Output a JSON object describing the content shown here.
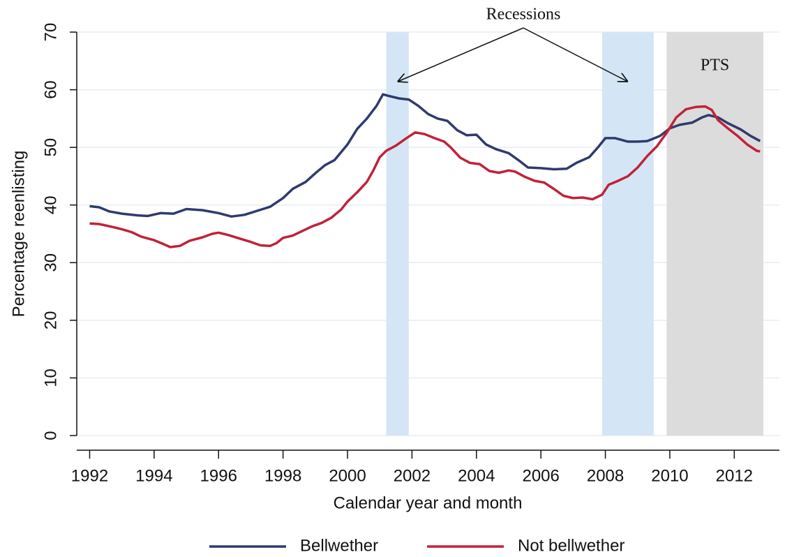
{
  "chart_data": {
    "type": "line",
    "xlabel": "Calendar year and month",
    "ylabel": "Percentage reenlisting",
    "xlim": [
      1991.6,
      2013.4
    ],
    "ylim": [
      0,
      70
    ],
    "xticks": [
      1992,
      1994,
      1996,
      1998,
      2000,
      2002,
      2004,
      2006,
      2008,
      2010,
      2012
    ],
    "yticks": [
      0,
      10,
      20,
      30,
      40,
      50,
      60,
      70
    ],
    "grid": true,
    "shaded_regions": [
      {
        "start": 2001.2,
        "end": 2001.9,
        "color": "#d4e6f5"
      },
      {
        "start": 2007.9,
        "end": 2009.5,
        "color": "#d4e6f5"
      },
      {
        "start": 2009.9,
        "end": 2012.9,
        "color": "#dcdcdc",
        "label": "PTS"
      }
    ],
    "annotation": "Recessions",
    "series": [
      {
        "name": "Bellwether",
        "color": "#2f3a6e",
        "x": [
          1992.0,
          1992.3,
          1992.6,
          1993.0,
          1993.5,
          1993.8,
          1994.2,
          1994.6,
          1995.0,
          1995.5,
          1996.0,
          1996.4,
          1996.8,
          1997.2,
          1997.6,
          1998.0,
          1998.3,
          1998.7,
          1999.0,
          1999.3,
          1999.6,
          2000.0,
          2000.3,
          2000.6,
          2000.9,
          2001.1,
          2001.3,
          2001.6,
          2001.9,
          2002.2,
          2002.5,
          2002.8,
          2003.1,
          2003.4,
          2003.7,
          2004.0,
          2004.3,
          2004.6,
          2005.0,
          2005.3,
          2005.6,
          2006.0,
          2006.4,
          2006.8,
          2007.1,
          2007.5,
          2007.8,
          2008.0,
          2008.3,
          2008.7,
          2009.0,
          2009.3,
          2009.7,
          2010.0,
          2010.3,
          2010.7,
          2011.0,
          2011.2,
          2011.5,
          2011.8,
          2012.2,
          2012.5,
          2012.8
        ],
        "values": [
          39.8,
          39.6,
          38.9,
          38.5,
          38.2,
          38.1,
          38.6,
          38.5,
          39.3,
          39.1,
          38.6,
          38.0,
          38.3,
          39.0,
          39.7,
          41.2,
          42.8,
          44.0,
          45.5,
          46.9,
          47.8,
          50.5,
          53.2,
          55.0,
          57.2,
          59.2,
          58.9,
          58.5,
          58.3,
          57.2,
          55.8,
          55.0,
          54.6,
          53.0,
          52.1,
          52.2,
          50.5,
          49.7,
          49.0,
          47.8,
          46.5,
          46.4,
          46.2,
          46.3,
          47.3,
          48.3,
          50.2,
          51.6,
          51.6,
          51.0,
          51.0,
          51.1,
          52.0,
          53.3,
          53.9,
          54.3,
          55.2,
          55.6,
          55.2,
          54.2,
          53.1,
          52.0,
          51.1
        ]
      },
      {
        "name": "Not bellwether",
        "color": "#c0223a",
        "x": [
          1992.0,
          1992.3,
          1992.7,
          1993.0,
          1993.3,
          1993.6,
          1994.0,
          1994.3,
          1994.5,
          1994.8,
          1995.1,
          1995.5,
          1995.8,
          1996.0,
          1996.3,
          1996.7,
          1997.0,
          1997.3,
          1997.6,
          1997.8,
          1998.0,
          1998.3,
          1998.6,
          1998.9,
          1999.2,
          1999.5,
          1999.8,
          2000.0,
          2000.3,
          2000.6,
          2000.8,
          2001.0,
          2001.2,
          2001.5,
          2001.8,
          2002.1,
          2002.4,
          2002.7,
          2003.0,
          2003.2,
          2003.5,
          2003.8,
          2004.1,
          2004.4,
          2004.7,
          2005.0,
          2005.2,
          2005.5,
          2005.8,
          2006.1,
          2006.4,
          2006.7,
          2007.0,
          2007.3,
          2007.6,
          2007.9,
          2008.1,
          2008.4,
          2008.7,
          2009.0,
          2009.3,
          2009.6,
          2009.9,
          2010.2,
          2010.5,
          2010.8,
          2011.1,
          2011.3,
          2011.5,
          2011.8,
          2012.1,
          2012.4,
          2012.7,
          2012.8
        ],
        "values": [
          36.8,
          36.7,
          36.2,
          35.8,
          35.3,
          34.5,
          33.9,
          33.2,
          32.7,
          32.9,
          33.8,
          34.4,
          35.0,
          35.2,
          34.8,
          34.1,
          33.6,
          33.0,
          32.9,
          33.4,
          34.3,
          34.7,
          35.5,
          36.3,
          36.9,
          37.8,
          39.2,
          40.6,
          42.2,
          44.0,
          46.0,
          48.3,
          49.4,
          50.3,
          51.5,
          52.6,
          52.3,
          51.6,
          51.0,
          50.0,
          48.2,
          47.3,
          47.1,
          45.9,
          45.6,
          46.0,
          45.8,
          44.9,
          44.2,
          43.9,
          42.8,
          41.6,
          41.2,
          41.3,
          41.0,
          41.8,
          43.5,
          44.2,
          45.0,
          46.5,
          48.5,
          50.2,
          52.5,
          55.2,
          56.6,
          57.0,
          57.1,
          56.5,
          54.7,
          53.3,
          52.0,
          50.5,
          49.4,
          49.3
        ]
      }
    ]
  }
}
